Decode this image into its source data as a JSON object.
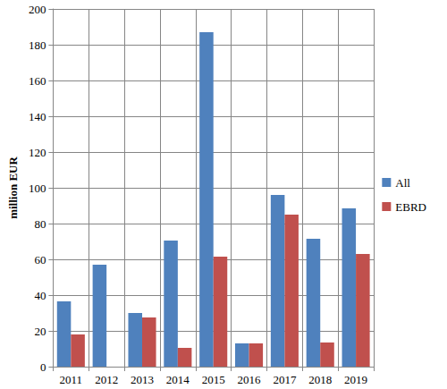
{
  "chart_data": {
    "type": "bar",
    "y_label": "million EUR",
    "categories": [
      "2011",
      "2012",
      "2013",
      "2014",
      "2015",
      "2016",
      "2017",
      "2018",
      "2019"
    ],
    "series": [
      {
        "name": "All",
        "color": "#4f81bd",
        "values": [
          36.5,
          57,
          30,
          70.5,
          187,
          13,
          96,
          71.5,
          88.5
        ]
      },
      {
        "name": "EBRD",
        "color": "#c0504d",
        "values": [
          18,
          0,
          27.5,
          10.5,
          61.5,
          13,
          85,
          13.5,
          63
        ]
      }
    ],
    "ylim": [
      0,
      200
    ],
    "yticks": [
      0,
      20,
      40,
      60,
      80,
      100,
      120,
      140,
      160,
      180,
      200
    ],
    "grid": true,
    "legend": "right"
  }
}
